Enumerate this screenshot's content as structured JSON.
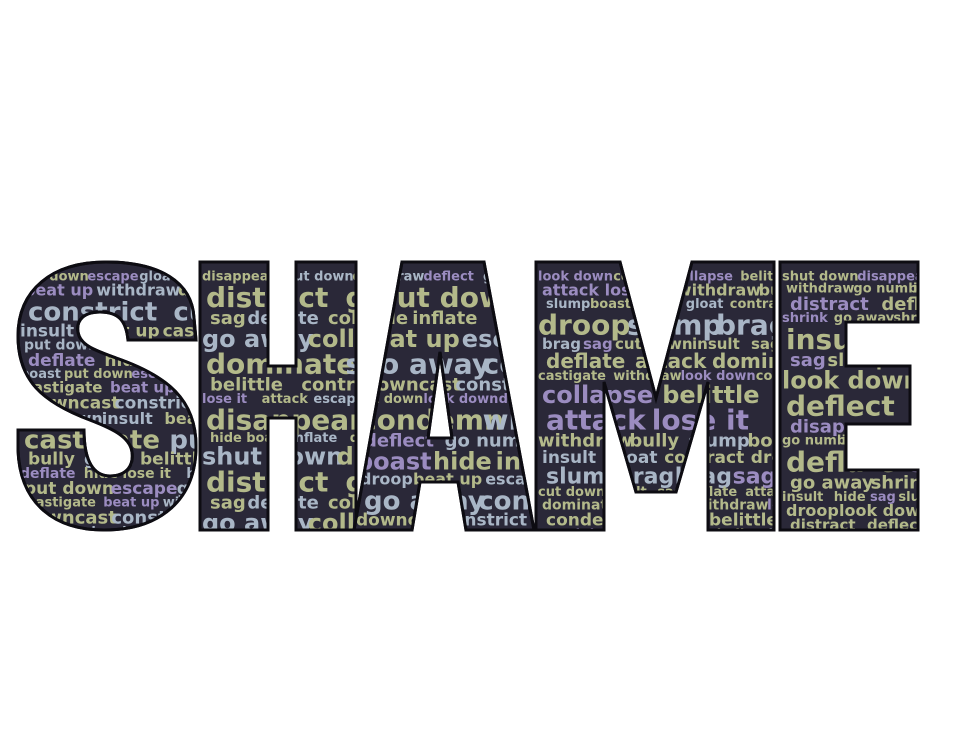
{
  "artwork": {
    "letters": [
      "S",
      "H",
      "A",
      "M",
      "E"
    ],
    "colors": {
      "background": "#ffffff",
      "letter_fill": "#2a2838",
      "letter_outline": "#0d0c12",
      "word_purple": "#9b8cc0",
      "word_olive": "#b3b98a",
      "word_blue": "#a9b6c6"
    },
    "letter_words": {
      "S": [
        {
          "text": "put down",
          "c": "o"
        },
        {
          "text": "escape",
          "c": "p"
        },
        {
          "text": "gloat",
          "c": "b"
        },
        {
          "text": "castigate",
          "c": "o"
        },
        {
          "text": "beat up",
          "c": "p"
        },
        {
          "text": "withdraw",
          "c": "b"
        },
        {
          "text": "downcast",
          "c": "o"
        },
        {
          "text": "constrict",
          "c": "b"
        },
        {
          "text": "cut down",
          "c": "b"
        },
        {
          "text": "insult",
          "c": "b"
        },
        {
          "text": "beat up",
          "c": "o"
        },
        {
          "text": "castigate",
          "c": "o"
        },
        {
          "text": "put down",
          "c": "b"
        },
        {
          "text": "bully",
          "c": "o"
        },
        {
          "text": "gloat",
          "c": "b"
        },
        {
          "text": "belittle",
          "c": "o"
        },
        {
          "text": "deflate",
          "c": "p"
        },
        {
          "text": "hide",
          "c": "o"
        },
        {
          "text": "lose it",
          "c": "o"
        },
        {
          "text": "boast",
          "c": "b"
        }
      ],
      "H": [
        {
          "text": "disappear",
          "c": "o"
        },
        {
          "text": "shut down",
          "c": "b"
        },
        {
          "text": "dominate",
          "c": "o"
        },
        {
          "text": "distract",
          "c": "o"
        },
        {
          "text": "go numb",
          "c": "o"
        },
        {
          "text": "sag",
          "c": "o"
        },
        {
          "text": "deflate",
          "c": "b"
        },
        {
          "text": "collapse",
          "c": "o"
        },
        {
          "text": "go away",
          "c": "b"
        },
        {
          "text": "collapse",
          "c": "o"
        },
        {
          "text": "dominate",
          "c": "o"
        },
        {
          "text": "shrink",
          "c": "b"
        },
        {
          "text": "belittle",
          "c": "o"
        },
        {
          "text": "contract",
          "c": "o"
        },
        {
          "text": "lose it",
          "c": "p"
        },
        {
          "text": "attack",
          "c": "o"
        },
        {
          "text": "escape",
          "c": "b"
        },
        {
          "text": "disappear",
          "c": "o"
        },
        {
          "text": "hide",
          "c": "o"
        },
        {
          "text": "boast",
          "c": "o"
        },
        {
          "text": "inflate",
          "c": "b"
        }
      ],
      "A": [
        {
          "text": "withdraw",
          "c": "b"
        },
        {
          "text": "deflect",
          "c": "p"
        },
        {
          "text": "go numb",
          "c": "b"
        },
        {
          "text": "shut down",
          "c": "o"
        },
        {
          "text": "boast",
          "c": "p"
        },
        {
          "text": "hide",
          "c": "o"
        },
        {
          "text": "inflate",
          "c": "o"
        },
        {
          "text": "droop",
          "c": "b"
        },
        {
          "text": "beat up",
          "c": "o"
        },
        {
          "text": "escape",
          "c": "b"
        },
        {
          "text": "go away",
          "c": "b"
        },
        {
          "text": "contract",
          "c": "b"
        },
        {
          "text": "downcast",
          "c": "o"
        },
        {
          "text": "constrict",
          "c": "b"
        },
        {
          "text": "cut down",
          "c": "o"
        },
        {
          "text": "look down",
          "c": "p"
        },
        {
          "text": "deflect",
          "c": "p"
        },
        {
          "text": "condemn",
          "c": "o"
        }
      ],
      "M": [
        {
          "text": "look down",
          "c": "p"
        },
        {
          "text": "condemn",
          "c": "o"
        },
        {
          "text": "collapse",
          "c": "p"
        },
        {
          "text": "belittle",
          "c": "o"
        },
        {
          "text": "attack",
          "c": "p"
        },
        {
          "text": "lose it",
          "c": "p"
        },
        {
          "text": "withdraw",
          "c": "o"
        },
        {
          "text": "bully",
          "c": "o"
        },
        {
          "text": "slump",
          "c": "b"
        },
        {
          "text": "boast",
          "c": "o"
        },
        {
          "text": "insult",
          "c": "b"
        },
        {
          "text": "gloat",
          "c": "b"
        },
        {
          "text": "contract",
          "c": "o"
        },
        {
          "text": "droop",
          "c": "o"
        },
        {
          "text": "slump",
          "c": "b"
        },
        {
          "text": "brag",
          "c": "b"
        },
        {
          "text": "brag",
          "c": "b"
        },
        {
          "text": "sag",
          "c": "p"
        },
        {
          "text": "cut down",
          "c": "o"
        },
        {
          "text": "insult",
          "c": "o"
        },
        {
          "text": "sag",
          "c": "o"
        },
        {
          "text": "deflate",
          "c": "o"
        },
        {
          "text": "attack",
          "c": "o"
        },
        {
          "text": "dominate",
          "c": "o"
        },
        {
          "text": "castigate",
          "c": "o"
        },
        {
          "text": "withdraw",
          "c": "o"
        }
      ],
      "E": [
        {
          "text": "shut down",
          "c": "o"
        },
        {
          "text": "disappear",
          "c": "p"
        },
        {
          "text": "withdraw",
          "c": "o"
        },
        {
          "text": "go numb",
          "c": "o"
        },
        {
          "text": "inflate",
          "c": "o"
        },
        {
          "text": "distract",
          "c": "p"
        },
        {
          "text": "deflate",
          "c": "o"
        },
        {
          "text": "shrink",
          "c": "p"
        },
        {
          "text": "go away",
          "c": "o"
        },
        {
          "text": "shrink",
          "c": "o"
        },
        {
          "text": "insult",
          "c": "o"
        },
        {
          "text": "hide",
          "c": "o"
        },
        {
          "text": "sag",
          "c": "p"
        },
        {
          "text": "slump",
          "c": "o"
        },
        {
          "text": "droop",
          "c": "o"
        },
        {
          "text": "look down",
          "c": "o"
        },
        {
          "text": "distract",
          "c": "o"
        },
        {
          "text": "deflect",
          "c": "o"
        }
      ]
    }
  }
}
